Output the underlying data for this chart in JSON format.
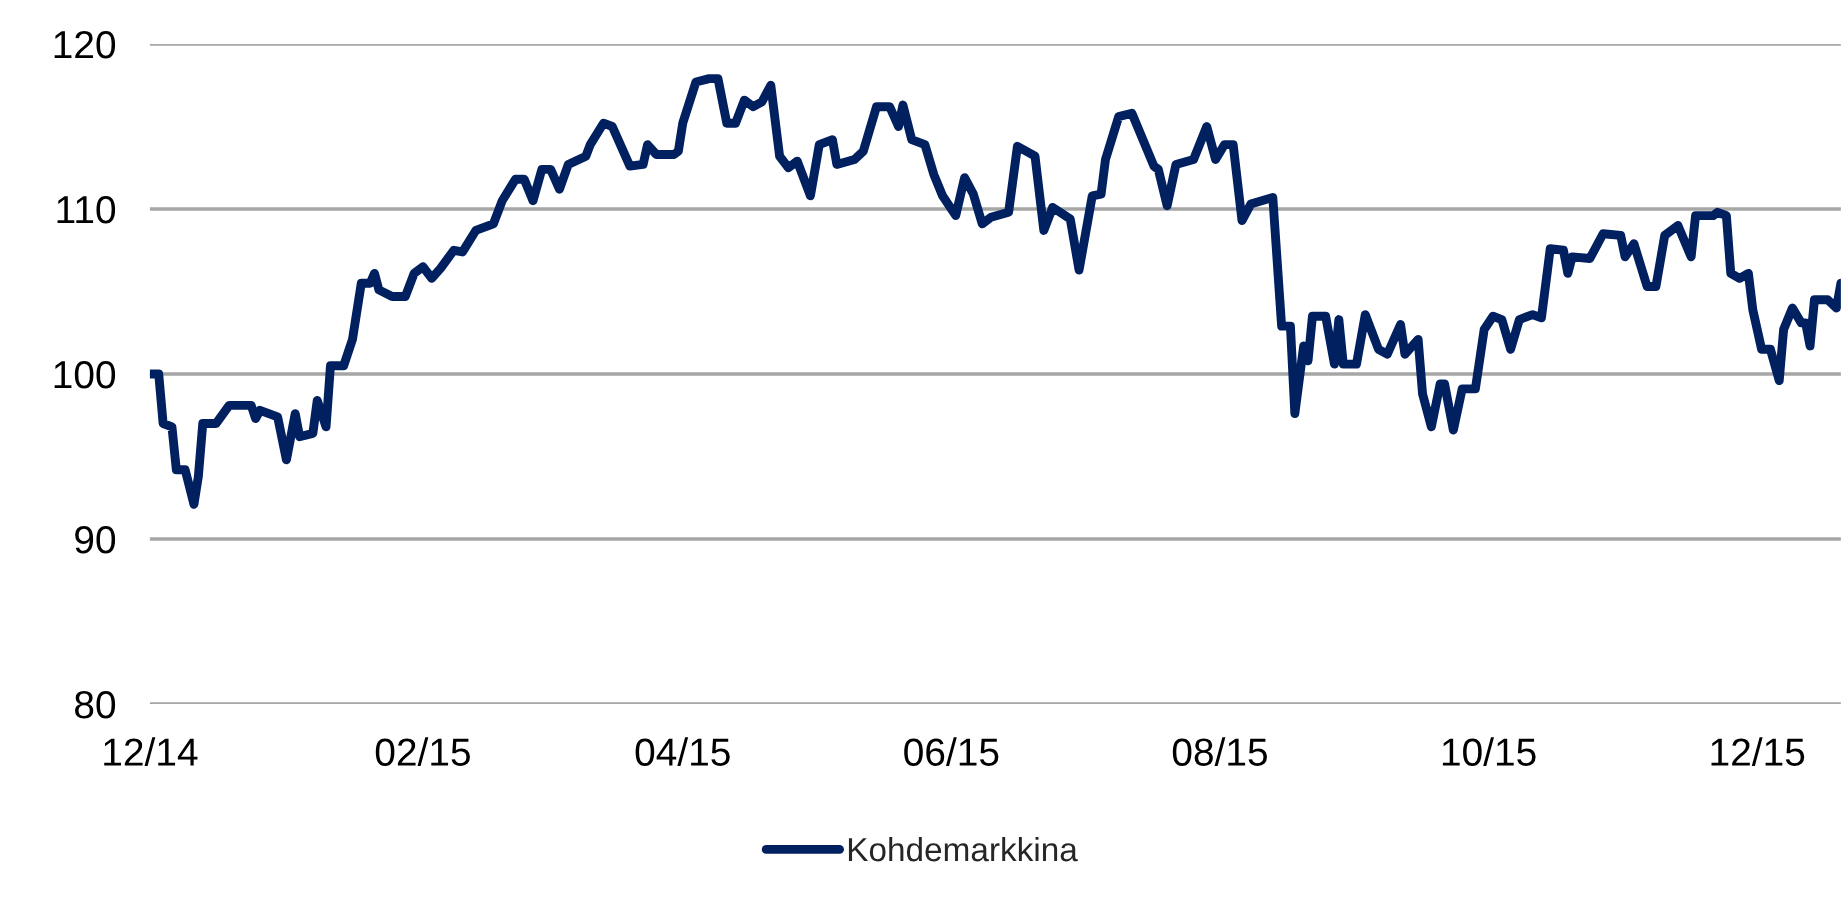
{
  "chart_data": {
    "type": "line",
    "ylim": [
      80,
      120
    ],
    "yticks": [
      80,
      90,
      100,
      110,
      120
    ],
    "xlim": [
      "2014-12-01",
      "2015-12-20"
    ],
    "xticks": [
      {
        "value": "2014-12-01",
        "label": "12/14"
      },
      {
        "value": "2015-02-01",
        "label": "02/15"
      },
      {
        "value": "2015-04-01",
        "label": "04/15"
      },
      {
        "value": "2015-06-01",
        "label": "06/15"
      },
      {
        "value": "2015-08-01",
        "label": "08/15"
      },
      {
        "value": "2015-10-01",
        "label": "10/15"
      },
      {
        "value": "2015-12-01",
        "label": "12/15"
      }
    ],
    "grid": "y",
    "legend": "bottom",
    "marker": "none",
    "line_style": "solid",
    "series": [
      {
        "name": "Kohdemarkkina",
        "color": "#002060",
        "x": [
          "2014-12-01",
          "2014-12-03",
          "2014-12-04",
          "2014-12-06",
          "2014-12-07",
          "2014-12-09",
          "2014-12-11",
          "2014-12-12",
          "2014-12-13",
          "2014-12-16",
          "2014-12-19",
          "2014-12-24",
          "2014-12-25",
          "2014-12-26",
          "2014-12-30",
          "2015-01-01",
          "2015-01-03",
          "2015-01-04",
          "2015-01-07",
          "2015-01-08",
          "2015-01-10",
          "2015-01-11",
          "2015-01-14",
          "2015-01-16",
          "2015-01-18",
          "2015-01-20",
          "2015-01-21",
          "2015-01-22",
          "2015-01-25",
          "2015-01-28",
          "2015-01-30",
          "2015-02-01",
          "2015-02-03",
          "2015-02-05",
          "2015-02-08",
          "2015-02-10",
          "2015-02-13",
          "2015-02-17",
          "2015-02-19",
          "2015-02-22",
          "2015-02-24",
          "2015-02-26",
          "2015-02-28",
          "2015-03-02",
          "2015-03-04",
          "2015-03-06",
          "2015-03-10",
          "2015-03-11",
          "2015-03-14",
          "2015-03-16",
          "2015-03-20",
          "2015-03-23",
          "2015-03-24",
          "2015-03-26",
          "2015-03-30",
          "2015-03-31",
          "2015-04-01",
          "2015-04-04",
          "2015-04-07",
          "2015-04-09",
          "2015-04-11",
          "2015-04-13",
          "2015-04-15",
          "2015-04-17",
          "2015-04-19",
          "2015-04-21",
          "2015-04-23",
          "2015-04-25",
          "2015-04-27",
          "2015-04-30",
          "2015-05-02",
          "2015-05-05",
          "2015-05-06",
          "2015-05-10",
          "2015-05-12",
          "2015-05-15",
          "2015-05-18",
          "2015-05-20",
          "2015-05-21",
          "2015-05-23",
          "2015-05-26",
          "2015-05-28",
          "2015-05-30",
          "2015-06-02",
          "2015-06-04",
          "2015-06-06",
          "2015-06-08",
          "2015-06-10",
          "2015-06-14",
          "2015-06-16",
          "2015-06-20",
          "2015-06-22",
          "2015-06-24",
          "2015-06-28",
          "2015-06-30",
          "2015-07-03",
          "2015-07-05",
          "2015-07-06",
          "2015-07-09",
          "2015-07-12",
          "2015-07-17",
          "2015-07-18",
          "2015-07-20",
          "2015-07-22",
          "2015-07-26",
          "2015-07-29",
          "2015-07-31",
          "2015-08-02",
          "2015-08-04",
          "2015-08-06",
          "2015-08-08",
          "2015-08-13",
          "2015-08-15",
          "2015-08-17",
          "2015-08-18",
          "2015-08-20",
          "2015-08-21",
          "2015-08-22",
          "2015-08-25",
          "2015-08-27",
          "2015-08-28",
          "2015-08-29",
          "2015-09-01",
          "2015-09-03",
          "2015-09-06",
          "2015-09-08",
          "2015-09-11",
          "2015-09-12",
          "2015-09-15",
          "2015-09-16",
          "2015-09-18",
          "2015-09-20",
          "2015-09-21",
          "2015-09-23",
          "2015-09-25",
          "2015-09-28",
          "2015-09-30",
          "2015-10-02",
          "2015-10-04",
          "2015-10-06",
          "2015-10-08",
          "2015-10-11",
          "2015-10-13",
          "2015-10-15",
          "2015-10-18",
          "2015-10-19",
          "2015-10-20",
          "2015-10-24",
          "2015-10-27",
          "2015-10-31",
          "2015-11-01",
          "2015-11-03",
          "2015-11-06",
          "2015-11-08",
          "2015-11-10",
          "2015-11-13",
          "2015-11-16",
          "2015-11-17",
          "2015-11-21",
          "2015-11-22",
          "2015-11-24",
          "2015-11-25",
          "2015-11-27",
          "2015-11-29",
          "2015-11-30",
          "2015-12-02",
          "2015-12-04",
          "2015-12-06",
          "2015-12-07",
          "2015-12-09",
          "2015-12-11",
          "2015-12-12",
          "2015-12-13",
          "2015-12-14",
          "2015-12-17",
          "2015-12-19",
          "2015-12-20"
        ],
        "values": [
          100.0,
          100.0,
          97.0,
          96.8,
          94.2,
          94.2,
          92.1,
          93.8,
          97.0,
          97.0,
          98.1,
          98.1,
          97.3,
          97.8,
          97.4,
          94.8,
          97.6,
          96.2,
          96.4,
          98.4,
          96.8,
          100.5,
          100.5,
          102.1,
          105.5,
          105.5,
          106.1,
          105.1,
          104.7,
          104.7,
          106.1,
          106.5,
          105.8,
          106.4,
          107.5,
          107.4,
          108.7,
          109.1,
          110.5,
          111.8,
          111.8,
          110.5,
          112.4,
          112.4,
          111.2,
          112.7,
          113.2,
          113.9,
          115.2,
          115.0,
          112.6,
          112.7,
          113.9,
          113.3,
          113.3,
          113.5,
          115.2,
          117.7,
          117.9,
          117.9,
          115.2,
          115.2,
          116.6,
          116.2,
          116.5,
          117.5,
          113.2,
          112.5,
          112.9,
          110.8,
          113.9,
          114.2,
          112.7,
          113.0,
          113.5,
          116.2,
          116.2,
          115.0,
          116.3,
          114.2,
          113.9,
          112.1,
          110.8,
          109.6,
          111.9,
          110.9,
          109.1,
          109.5,
          109.8,
          113.8,
          113.2,
          108.7,
          110.1,
          109.4,
          106.3,
          110.8,
          110.9,
          113.0,
          115.6,
          115.8,
          112.6,
          112.4,
          110.2,
          112.7,
          113.0,
          115.0,
          113.0,
          113.9,
          113.9,
          109.3,
          110.3,
          110.7,
          102.9,
          102.9,
          97.6,
          101.7,
          100.8,
          103.5,
          103.5,
          100.6,
          103.3,
          100.6,
          100.6,
          103.6,
          101.5,
          101.2,
          103.0,
          101.2,
          102.1,
          98.8,
          96.8,
          99.4,
          99.4,
          96.6,
          99.1,
          99.1,
          102.7,
          103.5,
          103.3,
          101.5,
          103.3,
          103.6,
          103.4,
          107.6,
          107.5,
          106.1,
          107.1,
          107.0,
          108.5,
          108.4,
          107.1,
          107.9,
          105.3,
          105.3,
          108.4,
          109.0,
          107.1,
          109.6,
          109.6,
          109.8,
          109.6,
          106.1,
          105.8,
          106.1,
          103.9,
          101.5,
          101.5,
          99.6,
          102.7,
          104.0,
          103.1,
          103.1,
          101.7,
          104.5,
          104.5,
          104.0,
          105.5
        ]
      }
    ]
  }
}
